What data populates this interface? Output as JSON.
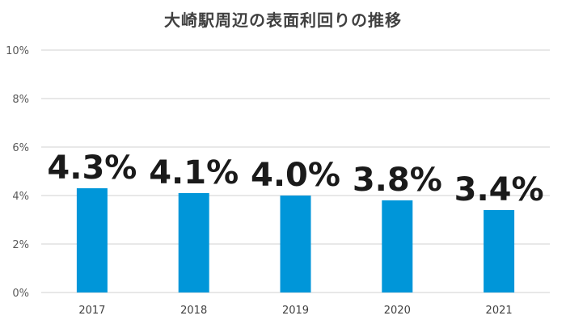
{
  "chart_data": {
    "type": "bar",
    "title": "大崎駅周辺の表面利回りの推移",
    "categories": [
      "2017",
      "2018",
      "2019",
      "2020",
      "2021"
    ],
    "values": [
      4.3,
      4.1,
      4.0,
      3.8,
      3.4
    ],
    "data_labels": [
      "4.3%",
      "4.1%",
      "4.0%",
      "3.8%",
      "3.4%"
    ],
    "xlabel": "",
    "ylabel": "",
    "ylim": [
      0,
      10
    ],
    "yticks": [
      "0%",
      "2%",
      "4%",
      "6%",
      "8%",
      "10%"
    ],
    "grid": true,
    "legend": "none",
    "bar_color": "#0096d9"
  }
}
